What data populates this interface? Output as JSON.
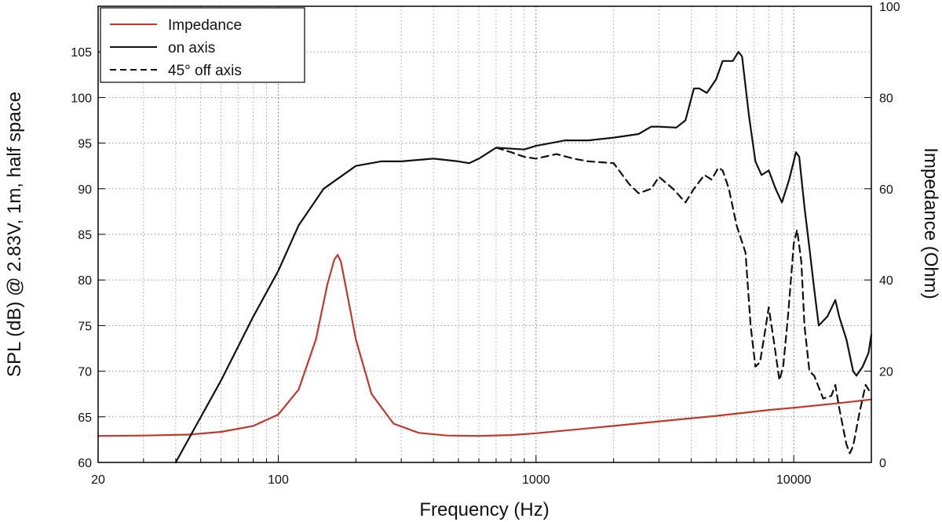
{
  "chart_data": {
    "type": "line",
    "x_scale": "log",
    "xlabel": "Frequency (Hz)",
    "ylabel_left": "SPL (dB) @ 2.83V, 1m, half space",
    "ylabel_right": "Impedance (Ohm)",
    "xlim": [
      20,
      20000
    ],
    "ylim_left": [
      60,
      110
    ],
    "ylim_right": [
      0,
      100
    ],
    "x_ticks": [
      {
        "value": 20,
        "label": "20"
      },
      {
        "value": 100,
        "label": "100"
      },
      {
        "value": 1000,
        "label": "1000"
      },
      {
        "value": 10000,
        "label": "10000"
      }
    ],
    "y_left_ticks": [
      60,
      65,
      70,
      75,
      80,
      85,
      90,
      95,
      100,
      105
    ],
    "y_right_ticks": [
      0,
      20,
      40,
      60,
      80,
      100
    ],
    "grid": true,
    "legend_position": "top-left",
    "series": [
      {
        "name": "Impedance",
        "axis": "right",
        "color": "#c0392b",
        "style": "solid",
        "x": [
          20,
          30,
          45,
          60,
          80,
          100,
          120,
          140,
          155,
          165,
          170,
          175,
          185,
          200,
          230,
          280,
          350,
          450,
          600,
          800,
          1000,
          2000,
          3000,
          5000,
          8000,
          10000,
          15000,
          20000
        ],
        "y": [
          5.8,
          5.9,
          6.1,
          6.7,
          8.0,
          10.5,
          16.0,
          27.0,
          39.0,
          44.5,
          45.5,
          44.0,
          37.0,
          27.0,
          15.0,
          8.5,
          6.5,
          5.9,
          5.8,
          6.0,
          6.4,
          8.0,
          9.0,
          10.2,
          11.5,
          12.0,
          13.0,
          13.8
        ]
      },
      {
        "name": "on axis",
        "axis": "left",
        "color": "#111111",
        "style": "solid",
        "x": [
          40,
          60,
          80,
          100,
          120,
          150,
          200,
          250,
          300,
          400,
          500,
          550,
          600,
          700,
          900,
          1000,
          1300,
          1600,
          2000,
          2500,
          2800,
          3000,
          3500,
          3800,
          4100,
          4300,
          4600,
          5000,
          5300,
          5800,
          6100,
          6300,
          6700,
          7100,
          7500,
          8000,
          8500,
          9000,
          9600,
          10200,
          10500,
          11000,
          11500,
          12000,
          12500,
          13500,
          14500,
          15000,
          16000,
          17000,
          17500,
          18500,
          19500,
          20000
        ],
        "y": [
          60,
          69,
          76,
          81,
          86,
          90,
          92.5,
          93,
          93,
          93.3,
          93,
          92.8,
          93.3,
          94.5,
          94.3,
          94.7,
          95.3,
          95.3,
          95.6,
          96.0,
          96.8,
          96.8,
          96.7,
          97.5,
          101.0,
          101.0,
          100.5,
          102.0,
          104.0,
          104.0,
          105.0,
          104.5,
          98.0,
          93.0,
          91.5,
          92.0,
          90.0,
          88.5,
          91.0,
          94.0,
          93.5,
          88.0,
          83.5,
          79.0,
          75.0,
          76.0,
          77.8,
          76.0,
          73.5,
          70.0,
          69.5,
          70.5,
          72.0,
          74.0
        ]
      },
      {
        "name": "45° off axis",
        "axis": "left",
        "color": "#111111",
        "style": "dashed",
        "x": [
          700,
          800,
          900,
          1000,
          1200,
          1400,
          1600,
          2000,
          2300,
          2500,
          2800,
          3000,
          3400,
          3800,
          4100,
          4500,
          4800,
          5100,
          5300,
          5600,
          6000,
          6500,
          6800,
          7100,
          7400,
          7700,
          8000,
          8400,
          8800,
          9100,
          9500,
          10000,
          10300,
          10700,
          11000,
          11500,
          12000,
          13000,
          14000,
          14500,
          15000,
          16000,
          16500,
          17000,
          18000,
          19000,
          20000
        ],
        "y": [
          94.5,
          94.0,
          93.5,
          93.3,
          93.8,
          93.3,
          93.0,
          92.8,
          90.5,
          89.5,
          90.0,
          91.3,
          90.0,
          88.5,
          90.0,
          91.5,
          91.0,
          92.3,
          92.0,
          90.0,
          86.0,
          83.0,
          75.0,
          70.5,
          71.0,
          74.0,
          77.0,
          73.0,
          69.0,
          70.5,
          76.0,
          84.0,
          85.5,
          82.0,
          75.0,
          70.0,
          69.5,
          67.0,
          67.3,
          68.5,
          66.0,
          62.0,
          61.0,
          61.8,
          65.5,
          68.5,
          67.5
        ]
      }
    ]
  }
}
